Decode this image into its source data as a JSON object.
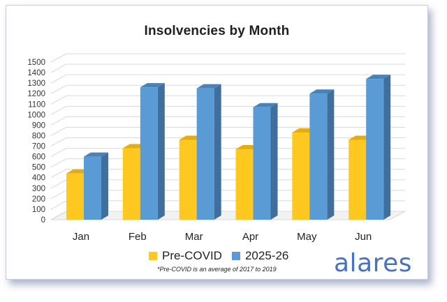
{
  "chart_data": {
    "type": "bar",
    "title": "Insolvencies by Month",
    "categories": [
      "Jan",
      "Feb",
      "Mar",
      "Apr",
      "May",
      "Jun"
    ],
    "series": [
      {
        "name": "Pre-COVID",
        "values": [
          440,
          680,
          760,
          670,
          830,
          760
        ],
        "color": "#ffc820"
      },
      {
        "name": "2025-26",
        "values": [
          600,
          1260,
          1250,
          1070,
          1200,
          1340
        ],
        "color": "#5b9bd5"
      }
    ],
    "ylim": [
      0,
      1500
    ],
    "yticks": [
      "0",
      "100",
      "200",
      "300",
      "400",
      "500",
      "600",
      "700",
      "800",
      "900",
      "1000",
      "1100",
      "1200",
      "1300",
      "1400",
      "1500"
    ],
    "grid": true,
    "legend_position": "bottom"
  },
  "footnote": "*Pre-COVID is an average of 2017 to 2019",
  "brand": "alares"
}
